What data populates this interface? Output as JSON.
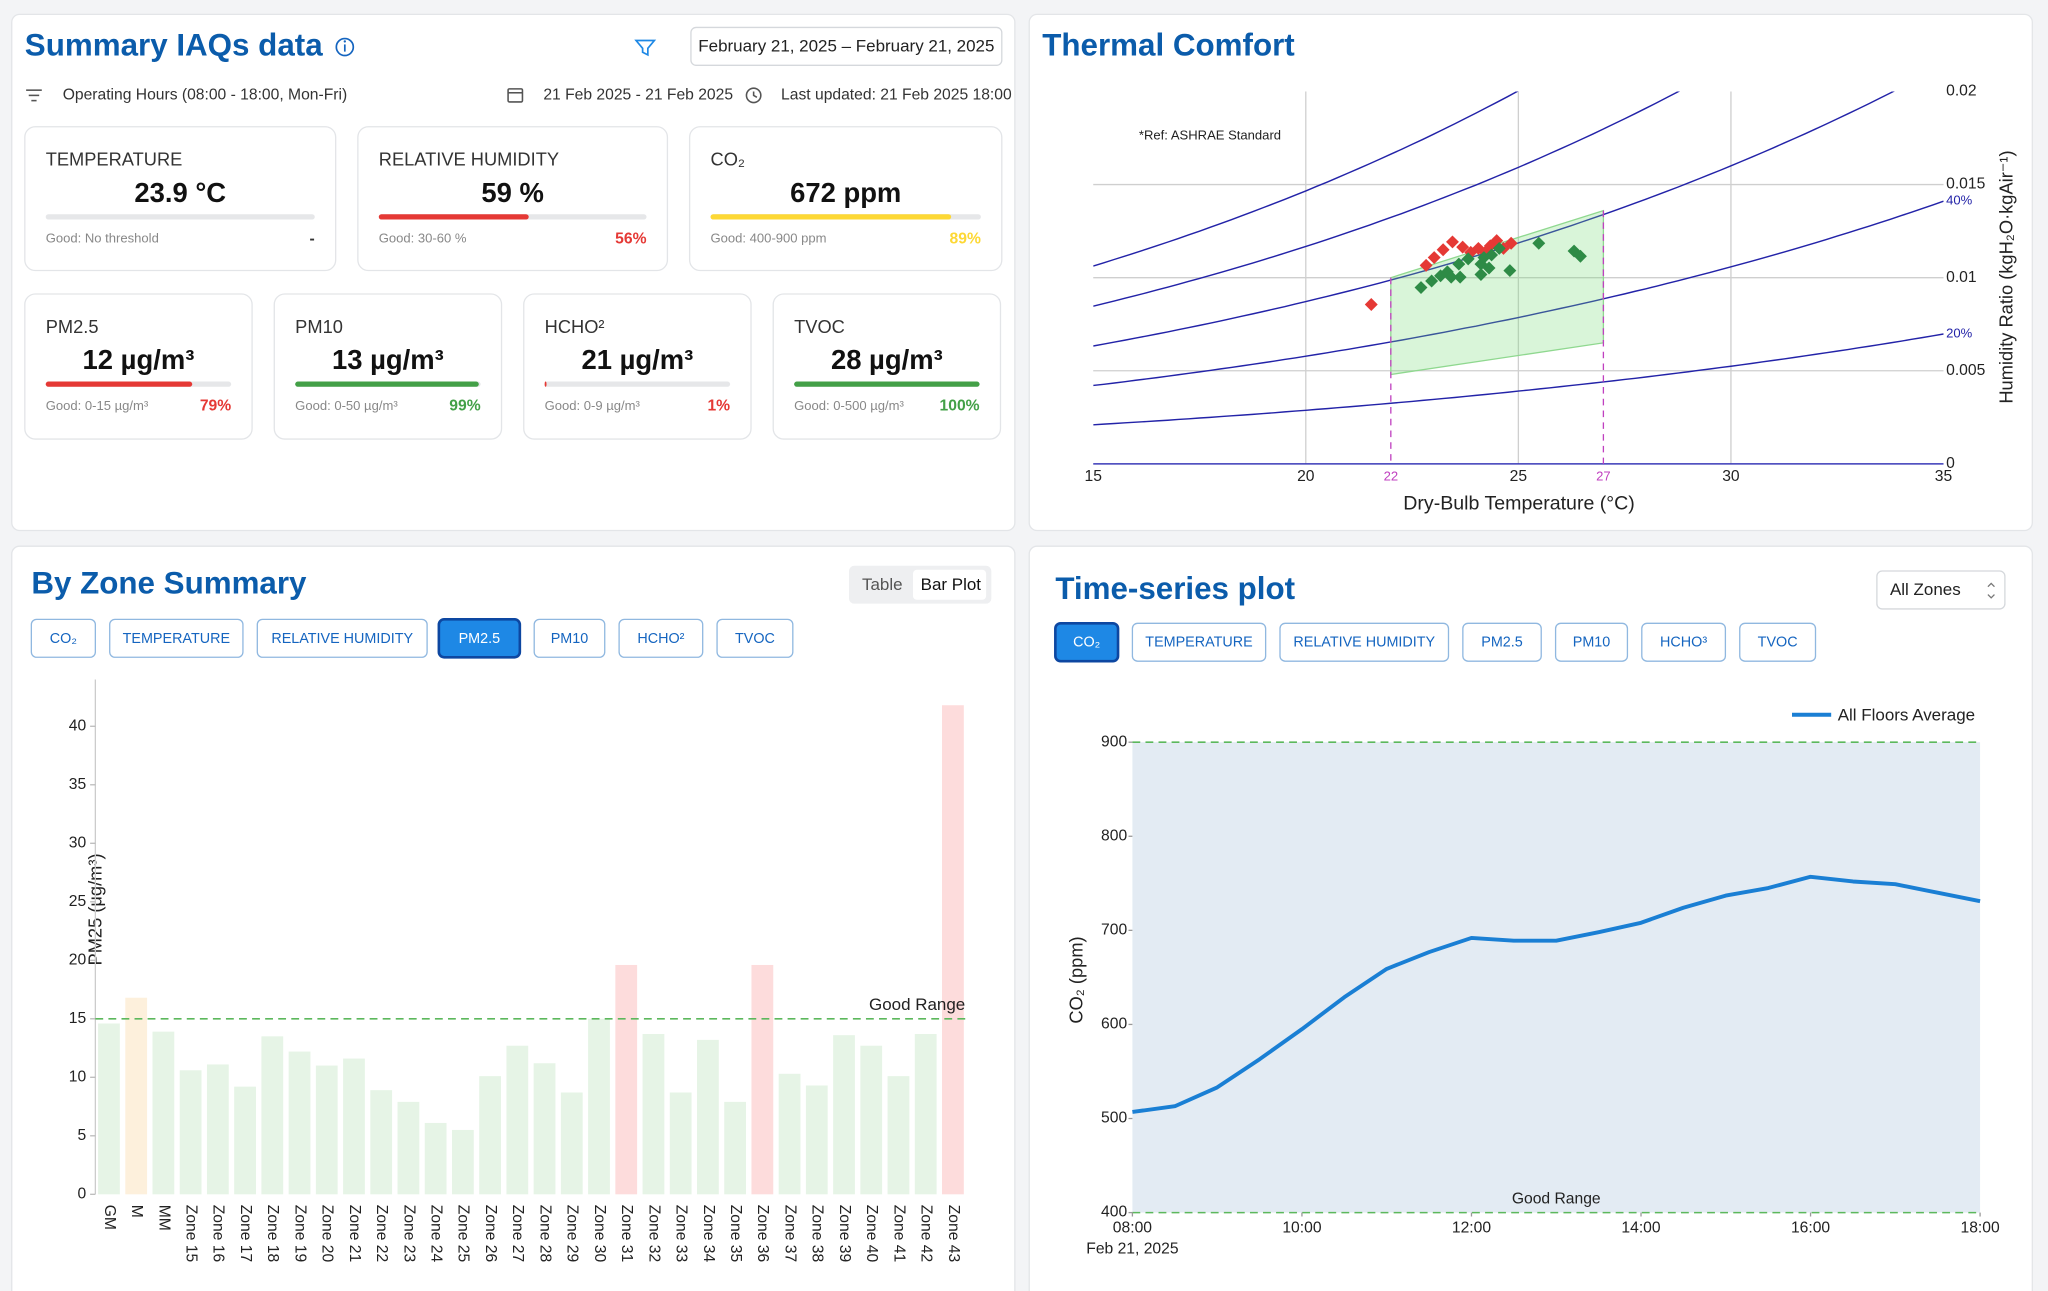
{
  "summary": {
    "title": "Summary IAQs data",
    "date_button": "February 21, 2025 – February 21, 2025",
    "operating_hours": "Operating Hours (08:00 - 18:00, Mon-Fri)",
    "date_range": "21 Feb 2025 - 21 Feb 2025",
    "last_updated": "Last updated: 21 Feb 2025 18:00",
    "cards": [
      {
        "label": "TEMPERATURE",
        "value": "23.9 °C",
        "range": "Good: No threshold",
        "percent": {
          "label": "-"
        },
        "color": "#333333"
      },
      {
        "label": "RELATIVE HUMIDITY",
        "value": "59 %",
        "range": "Good: 30-60 %",
        "percent": {
          "value": 56,
          "label": "56%"
        },
        "color": "#e53935"
      },
      {
        "label": "CO₂",
        "value": "672 ppm",
        "range": "Good: 400-900 ppm",
        "percent": {
          "value": 89,
          "label": "89%"
        },
        "color": "#fdd835"
      },
      {
        "label": "PM2.5",
        "value": "12 µg/m³",
        "range": "Good: 0-15 µg/m³",
        "percent": {
          "value": 79,
          "label": "79%"
        },
        "color": "#e53935"
      },
      {
        "label": "PM10",
        "value": "13 µg/m³",
        "range": "Good: 0-50 µg/m³",
        "percent": {
          "value": 99,
          "label": "99%"
        },
        "color": "#43a047"
      },
      {
        "label": "HCHO²",
        "value": "21 µg/m³",
        "range": "Good: 0-9 µg/m³",
        "percent": {
          "value": 1,
          "label": "1%"
        },
        "color": "#e53935"
      },
      {
        "label": "TVOC",
        "value": "28 µg/m³",
        "range": "Good: 0-500 µg/m³",
        "percent": {
          "value": 100,
          "label": "100%"
        },
        "color": "#43a047"
      }
    ]
  },
  "thermal": {
    "title": "Thermal Comfort",
    "note": "*Ref: ASHRAE Standard",
    "chart": {
      "type": "scatter",
      "x_label": "Dry-Bulb Temperature (°C)",
      "y_label": "Humidity Ratio (kgH₂O·kgAir⁻¹)",
      "xlim": [
        15,
        35
      ],
      "ylim": [
        0,
        0.02
      ],
      "xticks": [
        15,
        20,
        25,
        30,
        35
      ],
      "yticks": [
        0,
        0.005,
        0.01,
        0.015,
        0.02
      ],
      "comfort_xticks": [
        22,
        27
      ],
      "rh_curves": [
        {
          "value": 20,
          "label": "20%"
        },
        {
          "value": 40,
          "label": "40%"
        },
        {
          "value": 60
        },
        {
          "value": 80
        },
        {
          "value": 100
        }
      ],
      "comfort_zone": {
        "x": [
          22,
          22,
          27,
          27
        ],
        "y": [
          0.0048,
          0.01,
          0.0136,
          0.0065
        ]
      },
      "points": [
        {
          "color": "#e53935",
          "x": [
            21.54,
            22.83,
            23.02,
            23.23,
            23.45,
            23.69,
            23.88,
            24.06,
            24.22,
            24.34,
            24.49,
            24.65,
            24.83
          ],
          "y": [
            0.00856,
            0.01066,
            0.01108,
            0.0115,
            0.01192,
            0.01164,
            0.01136,
            0.01157,
            0.01136,
            0.01171,
            0.01199,
            0.01157,
            0.01185
          ]
        },
        {
          "color": "#2e8b46",
          "x": [
            22.71,
            22.96,
            23.17,
            23.33,
            23.42,
            23.63,
            23.6,
            23.82,
            24.12,
            24.19,
            24.31,
            24.37,
            24.55,
            24.8,
            25.48,
            26.31,
            26.46,
            24.12
          ],
          "y": [
            0.00947,
            0.00982,
            0.0101,
            0.01031,
            0.01003,
            0.01003,
            0.01073,
            0.01101,
            0.01073,
            0.01108,
            0.01052,
            0.01122,
            0.01157,
            0.01038,
            0.01185,
            0.01143,
            0.01115,
            0.01017
          ]
        }
      ]
    }
  },
  "zone": {
    "title": "By Zone Summary",
    "toggle": [
      "Table",
      "Bar Plot"
    ],
    "active_toggle": 1,
    "buttons": [
      "CO₂",
      "TEMPERATURE",
      "RELATIVE HUMIDITY",
      "PM2.5",
      "PM10",
      "HCHO²",
      "TVOC"
    ],
    "active_button": 3,
    "chart": {
      "type": "bar",
      "y_label": "PM25 (μg/m³)",
      "categories": [
        "GM",
        "M",
        "MM",
        "Zone 15",
        "Zone 16",
        "Zone 17",
        "Zone 18",
        "Zone 19",
        "Zone 20",
        "Zone 21",
        "Zone 22",
        "Zone 23",
        "Zone 24",
        "Zone 25",
        "Zone 26",
        "Zone 27",
        "Zone 28",
        "Zone 29",
        "Zone 30",
        "Zone 31",
        "Zone 32",
        "Zone 33",
        "Zone 34",
        "Zone 35",
        "Zone 36",
        "Zone 37",
        "Zone 38",
        "Zone 39",
        "Zone 40",
        "Zone 41",
        "Zone 42",
        "Zone 43"
      ],
      "values": [
        14.6,
        16.8,
        13.9,
        10.6,
        11.1,
        9.2,
        13.5,
        12.2,
        11.0,
        11.6,
        8.9,
        7.9,
        6.1,
        5.5,
        10.1,
        12.7,
        11.2,
        8.7,
        15.0,
        19.6,
        13.7,
        8.7,
        13.2,
        7.9,
        19.6,
        10.3,
        9.3,
        13.6,
        12.7,
        10.1,
        13.7,
        41.8
      ],
      "colors": [
        "#e6f4e6",
        "#fdf0dc",
        "#e6f4e6",
        "#e6f4e6",
        "#e6f4e6",
        "#e6f4e6",
        "#e6f4e6",
        "#e6f4e6",
        "#e6f4e6",
        "#e6f4e6",
        "#e6f4e6",
        "#e6f4e6",
        "#e6f4e6",
        "#e6f4e6",
        "#e6f4e6",
        "#e6f4e6",
        "#e6f4e6",
        "#e6f4e6",
        "#e6f4e6",
        "#fddcdc",
        "#e6f4e6",
        "#e6f4e6",
        "#e6f4e6",
        "#e6f4e6",
        "#fddcdc",
        "#e6f4e6",
        "#e6f4e6",
        "#e6f4e6",
        "#e6f4e6",
        "#e6f4e6",
        "#e6f4e6",
        "#fddcdc"
      ],
      "ylim": [
        0,
        44
      ],
      "yticks": [
        0,
        5,
        10,
        15,
        20,
        25,
        30,
        35,
        40
      ],
      "good_line": 15,
      "good_label": "Good Range"
    }
  },
  "timeseries": {
    "title": "Time-series plot",
    "dropdown": "All Zones",
    "buttons": [
      "CO₂",
      "TEMPERATURE",
      "RELATIVE HUMIDITY",
      "PM2.5",
      "PM10",
      "HCHO³",
      "TVOC"
    ],
    "active_button": 0,
    "chart": {
      "type": "line",
      "y_label": "CO₂ (ppm)",
      "x_sublabel": "Feb 21, 2025",
      "x": [
        8,
        8.5,
        9,
        9.5,
        10,
        10.5,
        11,
        11.5,
        12,
        12.5,
        13,
        13.5,
        14,
        14.5,
        15,
        15.5,
        16,
        16.5,
        17,
        17.5,
        18
      ],
      "series": [
        {
          "name": "All Floors Average",
          "color": "#1a7fd4",
          "values": [
            507,
            513,
            533,
            563,
            595,
            629,
            659,
            677,
            692,
            689,
            689,
            698,
            708,
            724,
            737,
            745,
            757,
            752,
            749,
            740,
            731
          ]
        }
      ],
      "xlim": [
        8,
        18
      ],
      "ylim": [
        400,
        900
      ],
      "xticks": [
        {
          "value": 8,
          "label": "08:00"
        },
        {
          "value": 10,
          "label": "10:00"
        },
        {
          "value": 12,
          "label": "12:00"
        },
        {
          "value": 14,
          "label": "14:00"
        },
        {
          "value": 16,
          "label": "16:00"
        },
        {
          "value": 18,
          "label": "18:00"
        }
      ],
      "yticks": [
        400,
        500,
        600,
        700,
        800,
        900
      ],
      "good_range": [
        400,
        900
      ],
      "good_label": "Good Range"
    }
  }
}
